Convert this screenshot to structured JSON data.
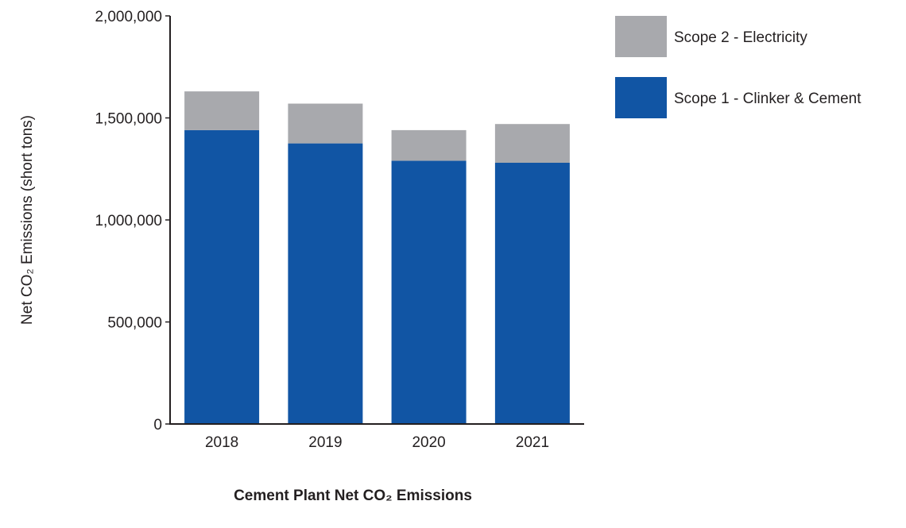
{
  "chart_data": {
    "type": "bar",
    "stacked": true,
    "title": "Cement Plant Net CO₂ Emissions",
    "ylabel": "Net CO₂ Emissions (short tons)",
    "xlabel": "",
    "categories": [
      "2018",
      "2019",
      "2020",
      "2021"
    ],
    "ylim": [
      0,
      2000000
    ],
    "yticks": [
      0,
      500000,
      1000000,
      1500000,
      2000000
    ],
    "ytick_labels": [
      "0",
      "500,000",
      "1,000,000",
      "1,500,000",
      "2,000,000"
    ],
    "series": [
      {
        "name": "Scope 1 - Clinker & Cement",
        "color": "#1155a4",
        "values": [
          1440000,
          1375000,
          1290000,
          1280000
        ]
      },
      {
        "name": "Scope 2 - Electricity",
        "color": "#a8a9ad",
        "values": [
          190000,
          195000,
          150000,
          190000
        ]
      }
    ],
    "legend_position": "top-right",
    "grid": false
  }
}
